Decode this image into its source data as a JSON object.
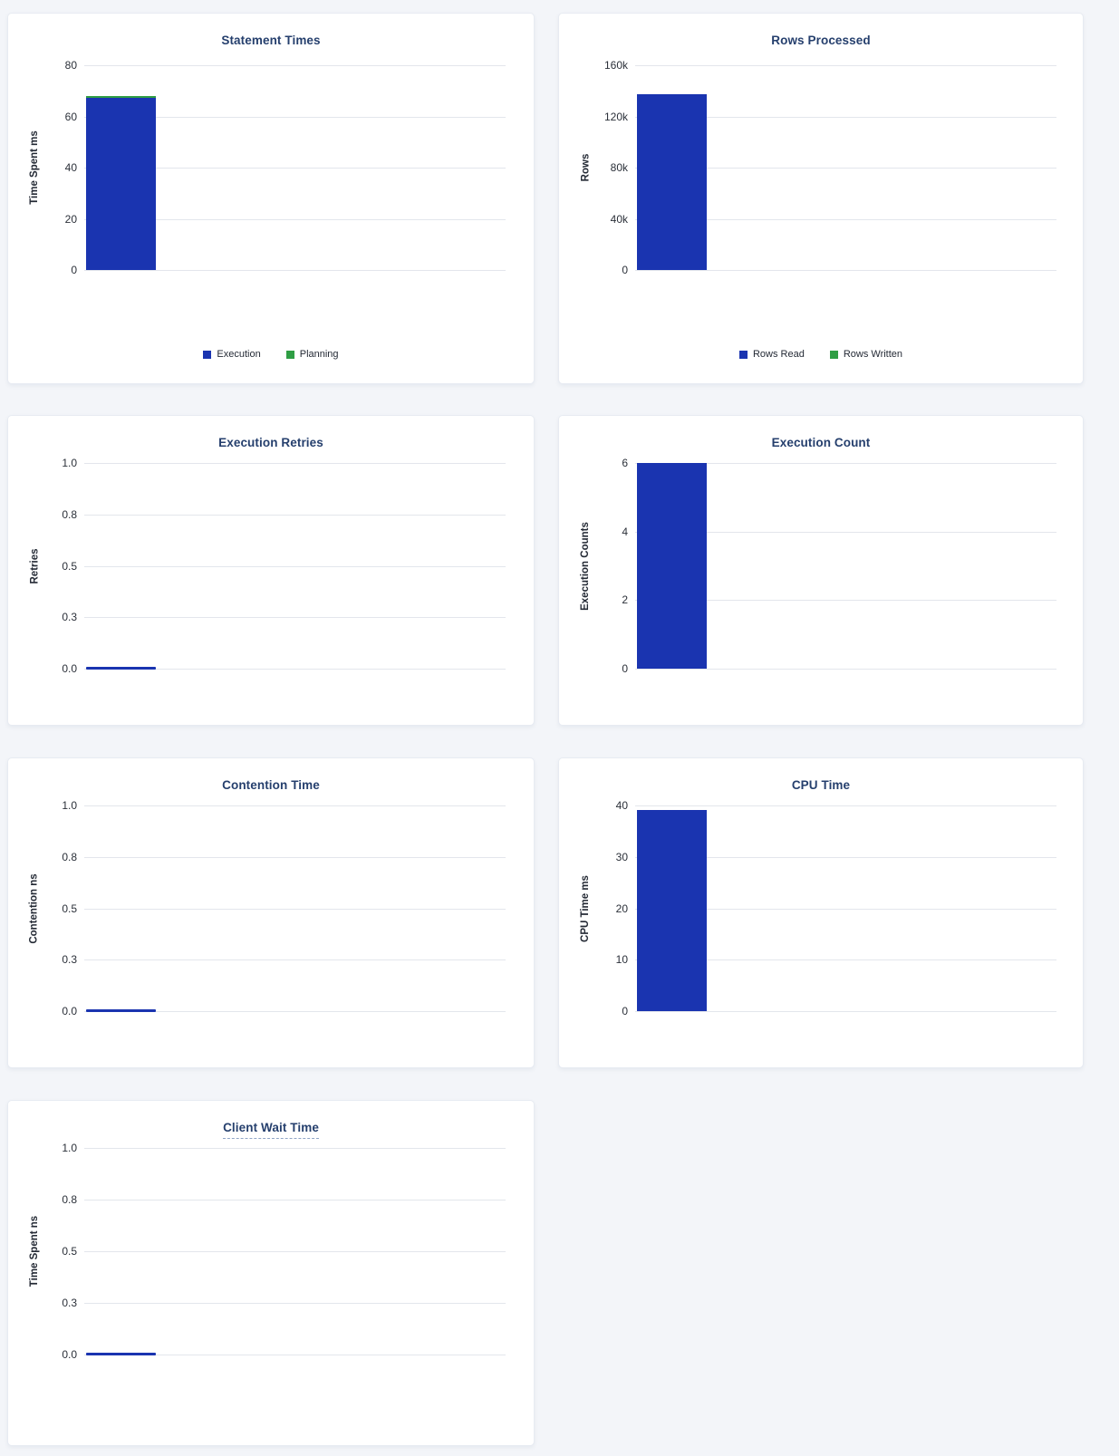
{
  "colors": {
    "bar_blue": "#1A34B0",
    "bar_green": "#2F9E44",
    "title_navy": "#253F6D",
    "page_background": "#F3F5F9",
    "panel_background": "#FFFFFF",
    "gridline": "#E3E6EC"
  },
  "chart_data": [
    {
      "type": "bar",
      "title": "Statement Times",
      "ylabel": "Time Spent ms",
      "ymax": 80,
      "ylim": [
        0,
        80
      ],
      "ytick_labels": [
        "0",
        "20",
        "40",
        "60",
        "80"
      ],
      "stacked": true,
      "grid": true,
      "legend": true,
      "legend_position": "bottom",
      "series": [
        {
          "name": "Execution",
          "value": 67.3,
          "color": "#1A34B0"
        },
        {
          "name": "Planning",
          "value": 0.7,
          "color": "#2F9E44"
        }
      ]
    },
    {
      "type": "bar",
      "title": "Rows Processed",
      "ylabel": "Rows",
      "ymax": 160000,
      "ylim": [
        0,
        160000
      ],
      "ytick_labels": [
        "0",
        "40k",
        "80k",
        "120k",
        "160k"
      ],
      "stacked": true,
      "grid": true,
      "legend": true,
      "legend_position": "bottom",
      "series": [
        {
          "name": "Rows Read",
          "value": 137000,
          "color": "#1A34B0"
        },
        {
          "name": "Rows Written",
          "value": 0,
          "color": "#2F9E44"
        }
      ]
    },
    {
      "type": "bar",
      "title": "Execution Retries",
      "ylabel": "Retries",
      "ymax": 1.0,
      "ylim": [
        0,
        1.0
      ],
      "ytick_labels": [
        "0.0",
        "0.3",
        "0.5",
        "0.8",
        "1.0"
      ],
      "grid": true,
      "legend": false,
      "series": [
        {
          "name": "Retries",
          "value": 0,
          "color": "#1A34B0"
        }
      ]
    },
    {
      "type": "bar",
      "title": "Execution Count",
      "ylabel": "Execution Counts",
      "ymax": 6,
      "ylim": [
        0,
        6
      ],
      "ytick_labels": [
        "0",
        "2",
        "4",
        "6"
      ],
      "grid": true,
      "legend": false,
      "series": [
        {
          "name": "Execution Counts",
          "value": 6,
          "color": "#1A34B0"
        }
      ]
    },
    {
      "type": "bar",
      "title": "Contention Time",
      "ylabel": "Contention ns",
      "ymax": 1.0,
      "ylim": [
        0,
        1.0
      ],
      "ytick_labels": [
        "0.0",
        "0.3",
        "0.5",
        "0.8",
        "1.0"
      ],
      "grid": true,
      "legend": false,
      "series": [
        {
          "name": "Contention",
          "value": 0,
          "color": "#1A34B0"
        }
      ]
    },
    {
      "type": "bar",
      "title": "CPU Time",
      "ylabel": "CPU Time ms",
      "ymax": 40,
      "ylim": [
        0,
        40
      ],
      "ytick_labels": [
        "0",
        "10",
        "20",
        "30",
        "40"
      ],
      "grid": true,
      "legend": false,
      "series": [
        {
          "name": "CPU Time",
          "value": 39.1,
          "color": "#1A34B0"
        }
      ]
    },
    {
      "type": "bar",
      "title": "Client Wait Time",
      "ylabel": "Time Spent ns",
      "ymax": 1.0,
      "ylim": [
        0,
        1.0
      ],
      "ytick_labels": [
        "0.0",
        "0.3",
        "0.5",
        "0.8",
        "1.0"
      ],
      "grid": true,
      "legend": false,
      "title_underlined": true,
      "series": [
        {
          "name": "Client Wait",
          "value": 0,
          "color": "#1A34B0"
        }
      ]
    }
  ]
}
